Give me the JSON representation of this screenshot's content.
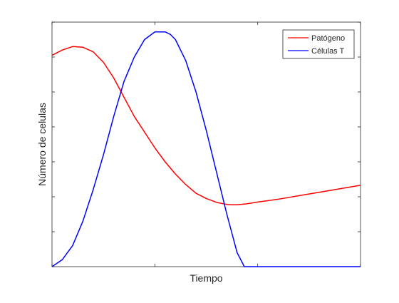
{
  "chart_data": {
    "type": "line",
    "xlabel": "Tiempo",
    "ylabel": "Número de celulas",
    "xlim": [
      0,
      3
    ],
    "ylim": [
      0,
      7
    ],
    "xticks": [
      0,
      1,
      2,
      3
    ],
    "yticks": [
      0,
      1,
      2,
      3,
      4,
      5,
      6,
      7
    ],
    "show_tick_labels": false,
    "grid": false,
    "legend_position": "top-right",
    "series": [
      {
        "name": "Patógeno",
        "color": "#ff0000",
        "x": [
          0,
          0.1,
          0.2,
          0.3,
          0.4,
          0.5,
          0.6,
          0.7,
          0.8,
          0.9,
          1.0,
          1.1,
          1.2,
          1.3,
          1.4,
          1.5,
          1.6,
          1.7,
          1.75,
          1.8,
          1.9,
          2.0,
          2.2,
          2.4,
          2.6,
          2.8,
          3.0
        ],
        "values": [
          6.05,
          6.2,
          6.3,
          6.28,
          6.15,
          5.85,
          5.4,
          4.85,
          4.3,
          3.85,
          3.4,
          3.0,
          2.65,
          2.35,
          2.1,
          1.95,
          1.84,
          1.78,
          1.77,
          1.77,
          1.8,
          1.85,
          1.93,
          2.03,
          2.13,
          2.23,
          2.33
        ]
      },
      {
        "name": "Células T",
        "color": "#0000ff",
        "x": [
          0,
          0.1,
          0.2,
          0.3,
          0.4,
          0.5,
          0.6,
          0.7,
          0.8,
          0.9,
          1.0,
          1.1,
          1.15,
          1.2,
          1.3,
          1.4,
          1.5,
          1.6,
          1.7,
          1.8,
          1.87,
          1.9,
          2.0,
          2.5,
          3.0
        ],
        "values": [
          0,
          0.2,
          0.6,
          1.3,
          2.2,
          3.2,
          4.3,
          5.3,
          6.0,
          6.5,
          6.72,
          6.72,
          6.65,
          6.5,
          5.9,
          5.0,
          3.9,
          2.7,
          1.5,
          0.4,
          0,
          0,
          0,
          0,
          0
        ]
      }
    ]
  }
}
